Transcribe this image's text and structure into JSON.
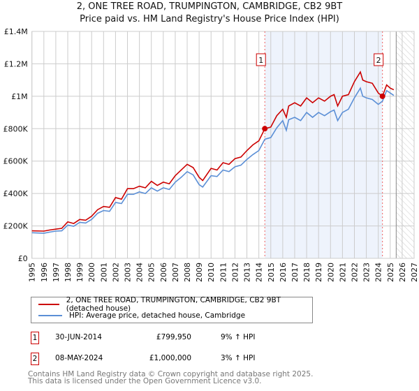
{
  "chart_data": {
    "type": "line",
    "title": "2, ONE TREE ROAD, TRUMPINGTON, CAMBRIDGE, CB2 9BT",
    "subtitle": "Price paid vs. HM Land Registry's House Price Index (HPI)",
    "xlim": [
      1995,
      2027
    ],
    "ylim": [
      0,
      1400000
    ],
    "x_ticks": [
      "1995",
      "1996",
      "1997",
      "1998",
      "1999",
      "2000",
      "2001",
      "2002",
      "2003",
      "2004",
      "2005",
      "2006",
      "2007",
      "2008",
      "2009",
      "2010",
      "2011",
      "2012",
      "2013",
      "2014",
      "2015",
      "2016",
      "2017",
      "2018",
      "2019",
      "2020",
      "2021",
      "2022",
      "2023",
      "2024",
      "2025",
      "2026",
      "2027"
    ],
    "y_ticks": [
      {
        "v": 0,
        "label": "£0"
      },
      {
        "v": 200000,
        "label": "£200K"
      },
      {
        "v": 400000,
        "label": "£400K"
      },
      {
        "v": 600000,
        "label": "£600K"
      },
      {
        "v": 800000,
        "label": "£800K"
      },
      {
        "v": 1000000,
        "label": "£1M"
      },
      {
        "v": 1200000,
        "label": "£1.2M"
      },
      {
        "v": 1400000,
        "label": "£1.4M"
      }
    ],
    "grid": true,
    "series": [
      {
        "name": "2, ONE TREE ROAD, TRUMPINGTON, CAMBRIDGE, CB2 9BT (detached house)",
        "color": "#cc0000",
        "x": [
          1995,
          1996,
          1996.5,
          1997,
          1997.5,
          1998,
          1998.5,
          1999,
          1999.5,
          2000,
          2000.5,
          2001,
          2001.5,
          2002,
          2002.5,
          2003,
          2003.5,
          2004,
          2004.5,
          2005,
          2005.5,
          2006,
          2006.5,
          2007,
          2007.5,
          2008,
          2008.5,
          2009,
          2009.3,
          2010,
          2010.5,
          2011,
          2011.5,
          2012,
          2012.5,
          2013,
          2013.5,
          2014,
          2014.5,
          2015,
          2015.5,
          2016,
          2016.3,
          2016.5,
          2017,
          2017.5,
          2018,
          2018.5,
          2019,
          2019.5,
          2020,
          2020.3,
          2020.6,
          2021,
          2021.5,
          2022,
          2022.5,
          2022.7,
          2023,
          2023.5,
          2024,
          2024.35,
          2024.7,
          2025,
          2025.3
        ],
        "y": [
          170000,
          168000,
          175000,
          180000,
          185000,
          225000,
          215000,
          240000,
          235000,
          260000,
          300000,
          320000,
          315000,
          375000,
          365000,
          430000,
          430000,
          445000,
          435000,
          475000,
          450000,
          470000,
          460000,
          510000,
          545000,
          580000,
          560000,
          500000,
          480000,
          555000,
          545000,
          590000,
          580000,
          615000,
          625000,
          665000,
          700000,
          725000,
          800000,
          810000,
          880000,
          920000,
          870000,
          940000,
          960000,
          940000,
          990000,
          960000,
          990000,
          970000,
          1000000,
          1010000,
          940000,
          1000000,
          1010000,
          1090000,
          1150000,
          1100000,
          1090000,
          1080000,
          1020000,
          1000000,
          1070000,
          1050000,
          1040000
        ]
      },
      {
        "name": "HPI: Average price, detached house, Cambridge",
        "color": "#5b8fd6",
        "x": [
          1995,
          1996,
          1996.5,
          1997,
          1997.5,
          1998,
          1998.5,
          1999,
          1999.5,
          2000,
          2000.5,
          2001,
          2001.5,
          2002,
          2002.5,
          2003,
          2003.5,
          2004,
          2004.5,
          2005,
          2005.5,
          2006,
          2006.5,
          2007,
          2007.5,
          2008,
          2008.5,
          2009,
          2009.3,
          2010,
          2010.5,
          2011,
          2011.5,
          2012,
          2012.5,
          2013,
          2013.5,
          2014,
          2014.5,
          2015,
          2015.5,
          2016,
          2016.3,
          2016.5,
          2017,
          2017.5,
          2018,
          2018.5,
          2019,
          2019.5,
          2020,
          2020.3,
          2020.6,
          2021,
          2021.5,
          2022,
          2022.5,
          2022.7,
          2023,
          2023.5,
          2024,
          2024.35,
          2024.7,
          2025,
          2025.3
        ],
        "y": [
          158000,
          155000,
          162000,
          168000,
          170000,
          205000,
          198000,
          222000,
          218000,
          240000,
          278000,
          295000,
          290000,
          345000,
          338000,
          395000,
          395000,
          410000,
          400000,
          435000,
          415000,
          435000,
          425000,
          470000,
          500000,
          535000,
          515000,
          455000,
          440000,
          510000,
          505000,
          545000,
          535000,
          565000,
          575000,
          610000,
          640000,
          665000,
          735000,
          745000,
          805000,
          850000,
          790000,
          855000,
          870000,
          850000,
          900000,
          870000,
          900000,
          880000,
          905000,
          915000,
          850000,
          900000,
          920000,
          990000,
          1050000,
          1000000,
          990000,
          980000,
          950000,
          970000,
          1035000,
          1020000,
          1005000
        ]
      }
    ],
    "annotations": [
      {
        "label": "1",
        "date": "30-JUN-2014",
        "x": 2014.5,
        "price": "£799,950",
        "value": 799950,
        "hpi": "9% ↑ HPI"
      },
      {
        "label": "2",
        "date": "08-MAY-2024",
        "x": 2024.35,
        "price": "£1,000,000",
        "value": 1000000,
        "hpi": "3% ↑ HPI"
      }
    ],
    "forecast_start": 2025.5,
    "legend_placement": "below"
  },
  "footer": {
    "line1": "Contains HM Land Registry data © Crown copyright and database right 2025.",
    "line2": "This data is licensed under the Open Government Licence v3.0."
  }
}
